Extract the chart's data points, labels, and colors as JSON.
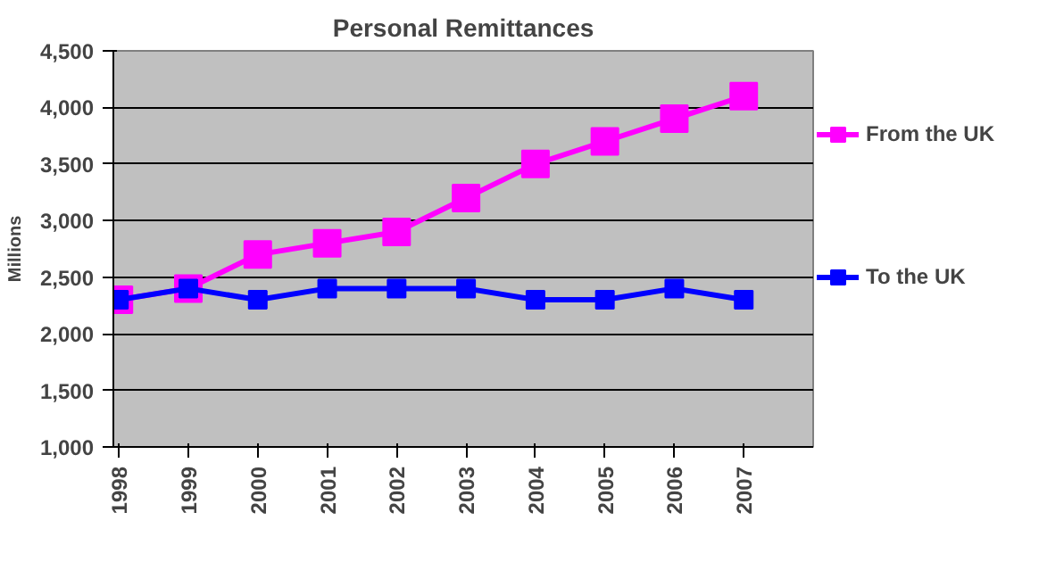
{
  "chart_data": {
    "type": "line",
    "title": "Personal Remittances",
    "ylabel": "Millions",
    "categories": [
      "1998",
      "1999",
      "2000",
      "2001",
      "2002",
      "2003",
      "2004",
      "2005",
      "2006",
      "2007"
    ],
    "series": [
      {
        "name": "From the UK",
        "color": "#ff00ff",
        "values": [
          2300,
          2400,
          2700,
          2800,
          2900,
          3200,
          3500,
          3700,
          3900,
          4100
        ]
      },
      {
        "name": "To the UK",
        "color": "#0000ff",
        "values": [
          2300,
          2400,
          2300,
          2400,
          2400,
          2400,
          2300,
          2300,
          2400,
          2300
        ]
      }
    ],
    "ylim": [
      1000,
      4500
    ],
    "yticks": [
      {
        "value": 1000,
        "label": "1,000"
      },
      {
        "value": 1500,
        "label": "1,500"
      },
      {
        "value": 2000,
        "label": "2,000"
      },
      {
        "value": 2500,
        "label": "2,500"
      },
      {
        "value": 3000,
        "label": "3,000"
      },
      {
        "value": 3500,
        "label": "3,500"
      },
      {
        "value": 4000,
        "label": "4,000"
      },
      {
        "value": 4500,
        "label": "4,500"
      }
    ],
    "grid": "y",
    "legend": "right",
    "marker": "square",
    "line_style": "solid"
  }
}
